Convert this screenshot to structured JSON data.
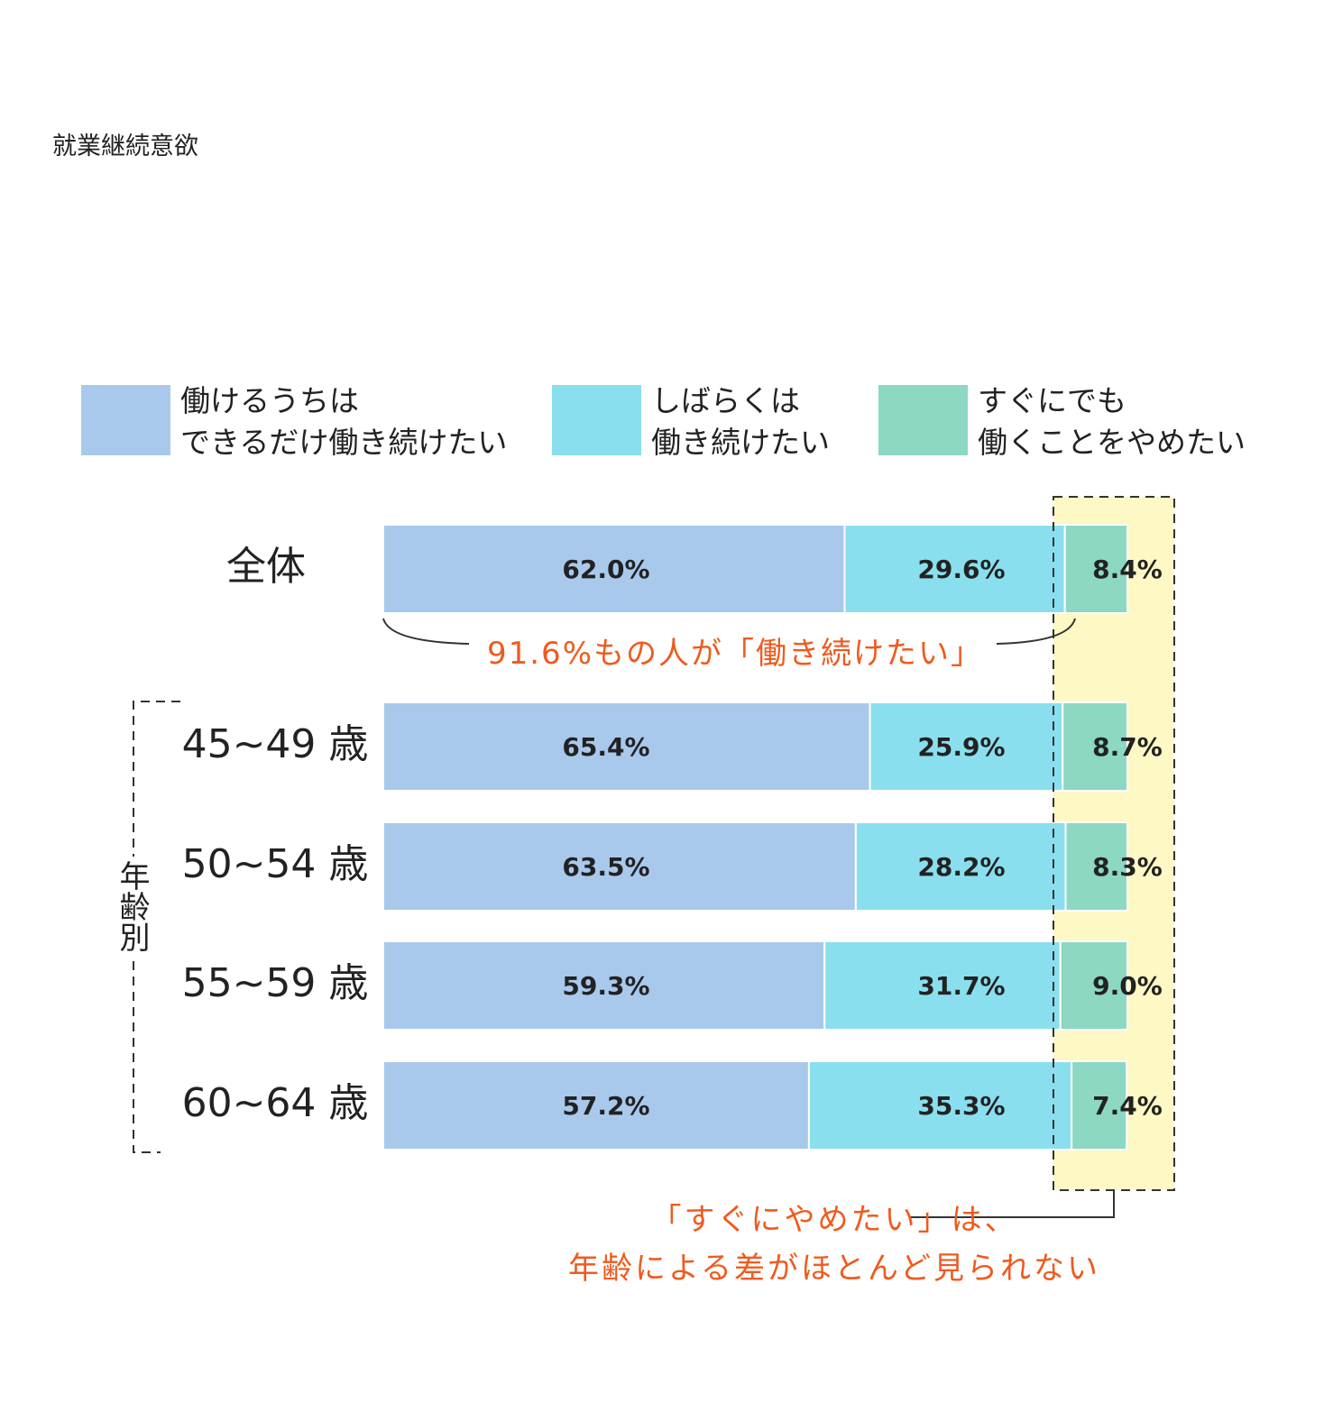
{
  "chart_data": {
    "type": "stacked_barh",
    "title": "就業継続意欲",
    "categories": [
      "全体",
      "45~49 歳",
      "50~54 歳",
      "55~59 歳",
      "60~64 歳"
    ],
    "group_label": "年齢別",
    "xlim": [
      0,
      100
    ],
    "series": [
      {
        "name": "働けるうちは\nできるだけ働き続けたい",
        "color": "#a9c9ec",
        "values": [
          62.0,
          65.4,
          63.5,
          59.3,
          57.2
        ],
        "value_labels": [
          "62.0%",
          "65.4%",
          "63.5%",
          "59.3%",
          "57.2%"
        ]
      },
      {
        "name": "しばらくは\n働き続けたい",
        "color": "#8adfee",
        "values": [
          29.6,
          25.9,
          28.2,
          31.7,
          35.3
        ],
        "value_labels": [
          "29.6%",
          "25.9%",
          "28.2%",
          "31.7%",
          "35.3%"
        ]
      },
      {
        "name": "すぐにでも\n働くことをやめたい",
        "color": "#8cd8c2",
        "values": [
          8.4,
          8.7,
          8.3,
          9.0,
          7.4
        ],
        "value_labels": [
          "8.4%",
          "8.7%",
          "8.3%",
          "9.0%",
          "7.4%"
        ]
      }
    ],
    "annotations": [
      "91.6%もの人が「働き続けたい」",
      "「すぐにやめたい」は、\n年齢による差がほとんど見られない"
    ],
    "highlight_color": "#fdf8c4"
  }
}
